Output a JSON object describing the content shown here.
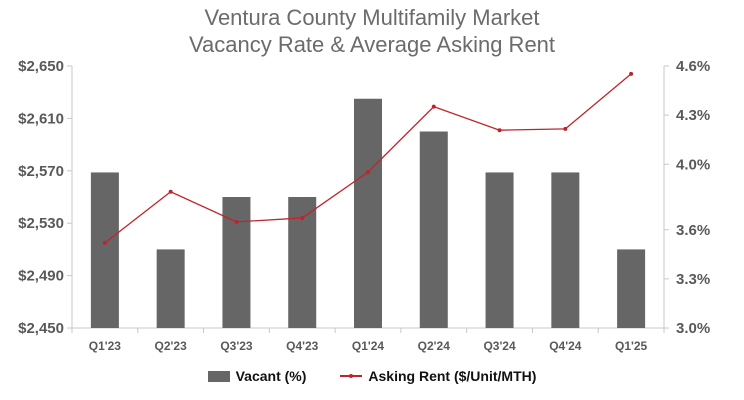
{
  "chart_data": {
    "type": "bar",
    "title": [
      "Ventura County Multifamily Market",
      "Vacancy Rate & Average Asking Rent"
    ],
    "categories": [
      "Q1'23",
      "Q2'23",
      "Q3'23",
      "Q4'23",
      "Q1'24",
      "Q2'24",
      "Q3'24",
      "Q4'24",
      "Q1'25"
    ],
    "left_axis": {
      "ylim": [
        2450,
        2650
      ],
      "ticks": [
        "$2,650",
        "$2,610",
        "$2,570",
        "$2,530",
        "$2,490",
        "$2,450"
      ],
      "tick_values": [
        2650,
        2610,
        2570,
        2530,
        2490,
        2450
      ]
    },
    "right_axis": {
      "ylim": [
        3.0,
        4.6
      ],
      "ticks": [
        "4.6%",
        "4.3%",
        "4.0%",
        "3.6%",
        "3.3%",
        "3.0%"
      ],
      "tick_values": [
        4.6,
        4.3,
        4.0,
        3.6,
        3.3,
        3.0
      ]
    },
    "series": [
      {
        "name": "Vacant (%)",
        "type": "bar",
        "axis": "right",
        "color": "#666666",
        "values": [
          3.95,
          3.48,
          3.8,
          3.8,
          4.4,
          4.2,
          3.95,
          3.95,
          3.48
        ]
      },
      {
        "name": "Asking Rent ($/Unit/MTH)",
        "type": "line",
        "axis": "left",
        "color": "#c0242b",
        "values": [
          2515,
          2554,
          2531,
          2534,
          2569,
          2619,
          2601,
          2602,
          2644
        ]
      }
    ],
    "grid": false,
    "legend": "bottom"
  }
}
